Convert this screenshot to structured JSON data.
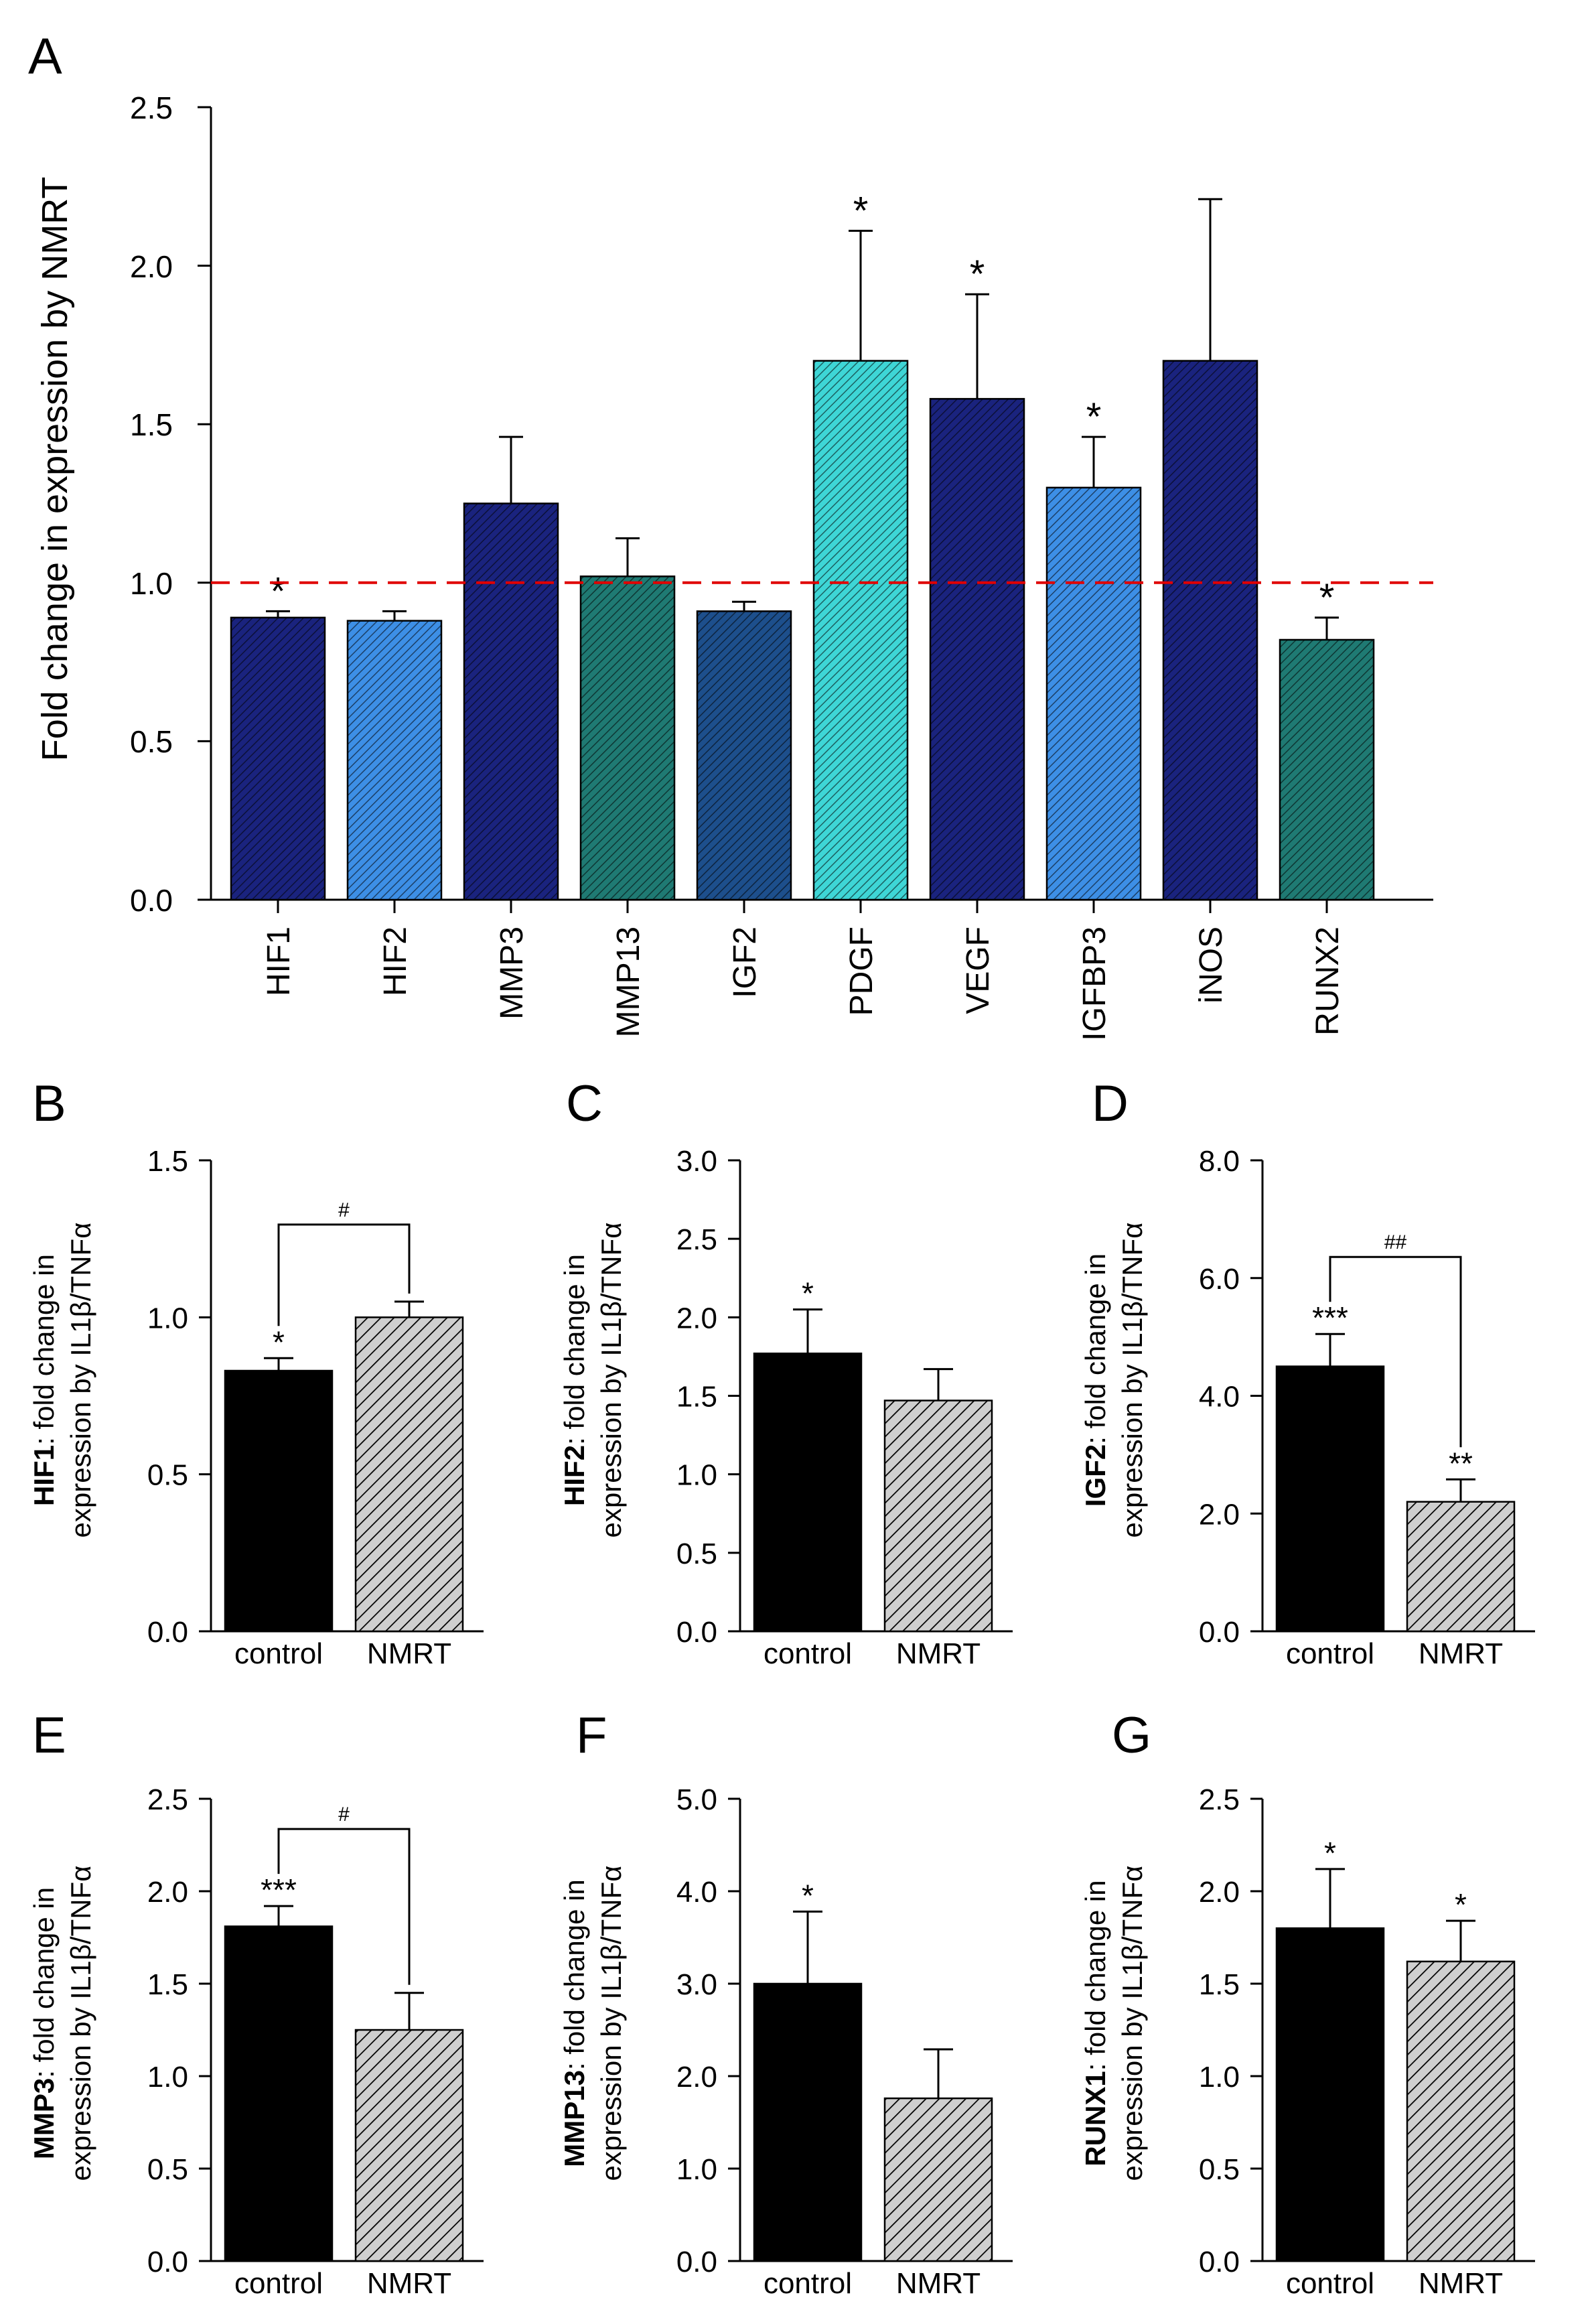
{
  "colors": {
    "line": "#000000",
    "ref_line": "#e00000",
    "hatch": "#000000",
    "control_fill": "#000000",
    "nmrt_fill": "#cfcfcf"
  },
  "chart_data": [
    {
      "panel_letter": "A",
      "type": "bar",
      "ylabel": "Fold change in expression by NMRT",
      "ylim": [
        0,
        2.5
      ],
      "yticks": [
        "0.0",
        "0.5",
        "1.0",
        "1.5",
        "2.0",
        "2.5"
      ],
      "categories": [
        "HIF1",
        "HIF2",
        "MMP3",
        "MMP13",
        "IGF2",
        "PDGF",
        "VEGF",
        "IGFBP3",
        "iNOS",
        "RUNX2"
      ],
      "values": [
        0.89,
        0.88,
        1.25,
        1.02,
        0.91,
        1.7,
        1.58,
        1.3,
        1.7,
        0.82
      ],
      "errors": [
        0.02,
        0.03,
        0.21,
        0.12,
        0.03,
        0.41,
        0.33,
        0.16,
        0.51,
        0.07
      ],
      "significance": [
        "*",
        "",
        "",
        "",
        "",
        "*",
        "*",
        "*",
        "",
        "*"
      ],
      "bar_colors": [
        "#1a237e",
        "#3d8fe6",
        "#1a237e",
        "#1f7a73",
        "#1d4f8c",
        "#3ed6d6",
        "#1a237e",
        "#3d8fe6",
        "#1a237e",
        "#1f7a73"
      ],
      "reference_line": 1.0
    },
    {
      "panel_letter": "B",
      "type": "bar",
      "ylabel_bold": "HIF1",
      "ylabel_rest": ": fold change in",
      "ylabel_line2": "expression by IL1β/TNFα",
      "ylim": [
        0,
        1.5
      ],
      "yticks": [
        "0.0",
        "0.5",
        "1.0",
        "1.5"
      ],
      "categories": [
        "control",
        "NMRT"
      ],
      "values": [
        0.83,
        1.0
      ],
      "errors": [
        0.04,
        0.05
      ],
      "significance": [
        "*",
        ""
      ],
      "bracket_label": "#"
    },
    {
      "panel_letter": "C",
      "type": "bar",
      "ylabel_bold": "HIF2",
      "ylabel_rest": ": fold change in",
      "ylabel_line2": "expression by IL1β/TNFα",
      "ylim": [
        0,
        3.0
      ],
      "yticks": [
        "0.0",
        "0.5",
        "1.0",
        "1.5",
        "2.0",
        "2.5",
        "3.0"
      ],
      "categories": [
        "control",
        "NMRT"
      ],
      "values": [
        1.77,
        1.47
      ],
      "errors": [
        0.28,
        0.2
      ],
      "significance": [
        "*",
        ""
      ],
      "bracket_label": ""
    },
    {
      "panel_letter": "D",
      "type": "bar",
      "ylabel_bold": "IGF2",
      "ylabel_rest": ": fold change in",
      "ylabel_line2": "expression by IL1β/TNFα",
      "ylim": [
        0,
        8.0
      ],
      "yticks": [
        "0.0",
        "2.0",
        "4.0",
        "6.0",
        "8.0"
      ],
      "categories": [
        "control",
        "NMRT"
      ],
      "values": [
        4.5,
        2.2
      ],
      "errors": [
        0.55,
        0.38
      ],
      "significance": [
        "***",
        "**"
      ],
      "bracket_label": "##"
    },
    {
      "panel_letter": "E",
      "type": "bar",
      "ylabel_bold": "MMP3",
      "ylabel_rest": ": fold change in",
      "ylabel_line2": "expression by IL1β/TNFα",
      "ylim": [
        0,
        2.5
      ],
      "yticks": [
        "0.0",
        "0.5",
        "1.0",
        "1.5",
        "2.0",
        "2.5"
      ],
      "categories": [
        "control",
        "NMRT"
      ],
      "values": [
        1.81,
        1.25
      ],
      "errors": [
        0.11,
        0.2
      ],
      "significance": [
        "***",
        ""
      ],
      "bracket_label": "#"
    },
    {
      "panel_letter": "F",
      "type": "bar",
      "ylabel_bold": "MMP13",
      "ylabel_rest": ": fold change in",
      "ylabel_line2": "expression by IL1β/TNFα",
      "ylim": [
        0,
        5.0
      ],
      "yticks": [
        "0.0",
        "1.0",
        "2.0",
        "3.0",
        "4.0",
        "5.0"
      ],
      "categories": [
        "control",
        "NMRT"
      ],
      "values": [
        3.0,
        1.76
      ],
      "errors": [
        0.78,
        0.53
      ],
      "significance": [
        "*",
        ""
      ],
      "bracket_label": ""
    },
    {
      "panel_letter": "G",
      "type": "bar",
      "ylabel_bold": "RUNX1",
      "ylabel_rest": ": fold change in",
      "ylabel_line2": "expression by IL1β/TNFα",
      "ylim": [
        0,
        2.5
      ],
      "yticks": [
        "0.0",
        "0.5",
        "1.0",
        "1.5",
        "2.0",
        "2.5"
      ],
      "categories": [
        "control",
        "NMRT"
      ],
      "values": [
        1.8,
        1.62
      ],
      "errors": [
        0.32,
        0.22
      ],
      "significance": [
        "*",
        "*"
      ],
      "bracket_label": ""
    }
  ]
}
